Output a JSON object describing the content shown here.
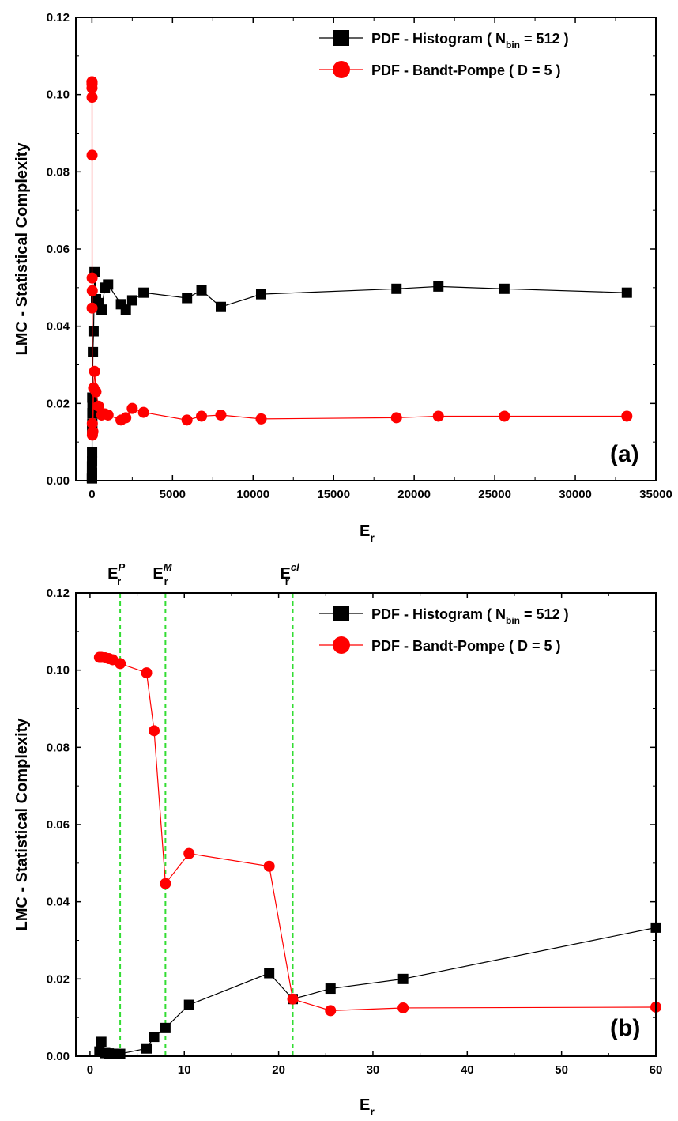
{
  "chart_data": [
    {
      "type": "line",
      "panel_label": "(a)",
      "xlabel": "E",
      "xlabel_sub": "r",
      "ylabel": "LMC - Statistical Complexity",
      "xlim": [
        -1000,
        35000
      ],
      "ylim": [
        0,
        0.12
      ],
      "xticks": [
        "0",
        "5000",
        "10000",
        "15000",
        "20000",
        "25000",
        "30000",
        "35000"
      ],
      "yticks": [
        "0.00",
        "0.02",
        "0.04",
        "0.06",
        "0.08",
        "0.10",
        "0.12"
      ],
      "legend_position": "top-right",
      "series": [
        {
          "name": "PDF - Histogram ( N",
          "name_sub": "bin",
          "name_tail": " = 512 )",
          "color": "#000000",
          "marker": "square",
          "x": [
            1,
            1.2,
            1.6,
            2,
            2.4,
            3.2,
            6,
            6.8,
            8,
            10.5,
            19,
            21.5,
            25.5,
            33.2,
            60,
            100,
            160,
            250,
            400,
            600,
            800,
            1000,
            1800,
            2100,
            2500,
            3200,
            5900,
            6800,
            8000,
            10500,
            18900,
            21500,
            25600,
            33200
          ],
          "y": [
            0.0012,
            0.0037,
            0.0008,
            0.0007,
            0.0006,
            0.0006,
            0.002,
            0.005,
            0.0073,
            0.0133,
            0.0215,
            0.0148,
            0.0175,
            0.02,
            0.0333,
            0.0387,
            0.054,
            0.047,
            0.046,
            0.0443,
            0.05,
            0.0508,
            0.0457,
            0.0443,
            0.0467,
            0.0487,
            0.0473,
            0.0493,
            0.045,
            0.0483,
            0.0497,
            0.0503,
            0.0497,
            0.0487
          ]
        },
        {
          "name": "PDF - Bandt-Pompe ( D = 5 )",
          "color": "#ff0000",
          "marker": "circle",
          "x": [
            1,
            1.2,
            1.6,
            2,
            2.4,
            3.2,
            6,
            6.8,
            8,
            10.5,
            19,
            21.5,
            25.5,
            33.2,
            60,
            100,
            160,
            250,
            400,
            600,
            800,
            1000,
            1800,
            2100,
            2500,
            3200,
            5900,
            6800,
            8000,
            10500,
            18900,
            21500,
            25600,
            33200
          ],
          "y": [
            0.1033,
            0.1033,
            0.1032,
            0.103,
            0.1027,
            0.1017,
            0.0993,
            0.0843,
            0.0447,
            0.0525,
            0.0492,
            0.0148,
            0.0118,
            0.0125,
            0.0127,
            0.024,
            0.0283,
            0.023,
            0.0193,
            0.017,
            0.0173,
            0.017,
            0.0157,
            0.0163,
            0.0187,
            0.0177,
            0.0157,
            0.0167,
            0.017,
            0.016,
            0.0163,
            0.0167,
            0.0167,
            0.0167
          ]
        }
      ]
    },
    {
      "type": "line",
      "panel_label": "(b)",
      "xlabel": "E",
      "xlabel_sub": "r",
      "ylabel": "LMC - Statistical Complexity",
      "xlim": [
        -1.5,
        60
      ],
      "ylim": [
        0,
        0.12
      ],
      "xticks": [
        "0",
        "10",
        "20",
        "30",
        "40",
        "50",
        "60"
      ],
      "yticks": [
        "0.00",
        "0.02",
        "0.04",
        "0.06",
        "0.08",
        "0.10",
        "0.12"
      ],
      "legend_position": "top-right",
      "reference_lines": [
        {
          "x": 3.2,
          "label": "E",
          "sub": "r",
          "sup": "P",
          "color": "#33dd33"
        },
        {
          "x": 8.0,
          "label": "E",
          "sub": "r",
          "sup": "M",
          "color": "#33dd33"
        },
        {
          "x": 21.5,
          "label": "E",
          "sub": "r",
          "sup": "cl",
          "color": "#33dd33"
        }
      ],
      "series": [
        {
          "name": "PDF - Histogram ( N",
          "name_sub": "bin",
          "name_tail": " = 512 )",
          "color": "#000000",
          "marker": "square",
          "x": [
            1,
            1.2,
            1.6,
            2,
            2.4,
            3.2,
            6,
            6.8,
            8,
            10.5,
            19,
            21.5,
            25.5,
            33.2,
            60
          ],
          "y": [
            0.0012,
            0.0037,
            0.0008,
            0.0007,
            0.0006,
            0.0006,
            0.002,
            0.005,
            0.0073,
            0.0133,
            0.0215,
            0.0148,
            0.0175,
            0.02,
            0.0333
          ]
        },
        {
          "name": "PDF - Bandt-Pompe ( D = 5 )",
          "color": "#ff0000",
          "marker": "circle",
          "x": [
            1,
            1.2,
            1.6,
            2,
            2.4,
            3.2,
            6,
            6.8,
            8,
            10.5,
            19,
            21.5,
            25.5,
            33.2,
            60
          ],
          "y": [
            0.1033,
            0.1033,
            0.1032,
            0.103,
            0.1027,
            0.1017,
            0.0993,
            0.0843,
            0.0447,
            0.0525,
            0.0492,
            0.0148,
            0.0118,
            0.0125,
            0.0127
          ]
        }
      ]
    }
  ]
}
